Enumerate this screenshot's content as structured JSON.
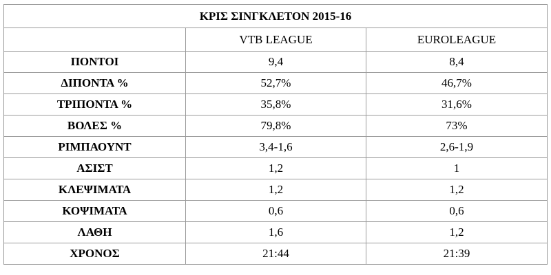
{
  "table": {
    "title": "ΚΡΙΣ ΣΙΝΓΚΛΕΤΟΝ 2015-16",
    "columns": [
      "",
      "VTB LEAGUE",
      "EUROLEAGUE"
    ],
    "rows": [
      {
        "label": "ΠΟΝΤΟΙ",
        "vtb": "9,4",
        "euro": "8,4"
      },
      {
        "label": "ΔΙΠΟΝΤΑ %",
        "vtb": "52,7%",
        "euro": "46,7%"
      },
      {
        "label": "ΤΡΙΠΟΝΤΑ %",
        "vtb": "35,8%",
        "euro": "31,6%"
      },
      {
        "label": "ΒΟΛΕΣ %",
        "vtb": "79,8%",
        "euro": "73%"
      },
      {
        "label": "ΡΙΜΠΑΟΥΝΤ",
        "vtb": "3,4-1,6",
        "euro": "2,6-1,9"
      },
      {
        "label": "ΑΣΙΣΤ",
        "vtb": "1,2",
        "euro": "1"
      },
      {
        "label": "ΚΛΕΨΙΜΑΤΑ",
        "vtb": "1,2",
        "euro": "1,2"
      },
      {
        "label": "ΚΟΨΙΜΑΤΑ",
        "vtb": "0,6",
        "euro": "0,6"
      },
      {
        "label": "ΛΑΘΗ",
        "vtb": "1,6",
        "euro": "1,2"
      },
      {
        "label": "ΧΡΟΝΟΣ",
        "vtb": "21:44",
        "euro": "21:39"
      }
    ]
  }
}
